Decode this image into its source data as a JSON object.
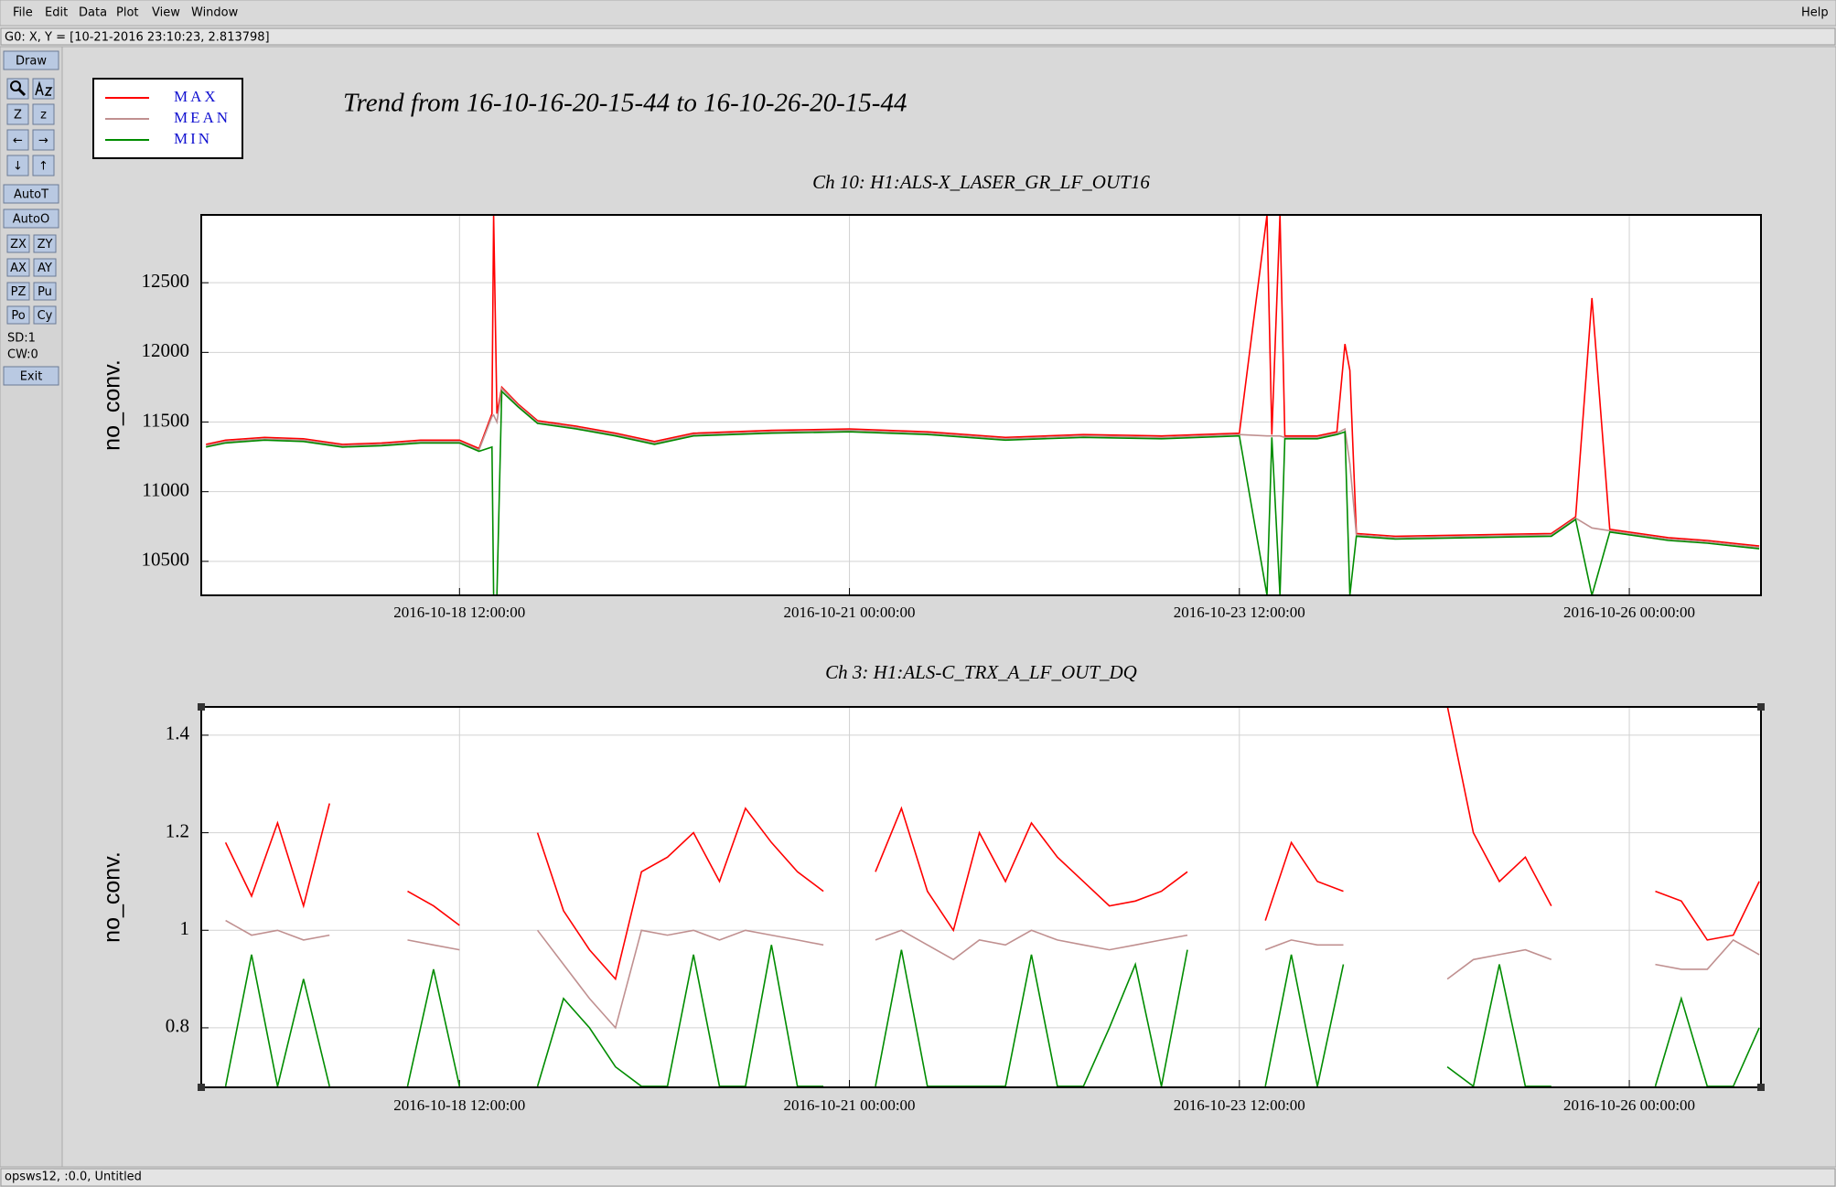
{
  "menu": {
    "items": [
      "File",
      "Edit",
      "Data",
      "Plot",
      "View",
      "Window"
    ],
    "help": "Help"
  },
  "status": "G0: X, Y = [10-21-2016 23:10:23, 2.813798]",
  "toolbar": {
    "draw": "Draw",
    "zoom": [
      "Z",
      "z"
    ],
    "arrows": [
      "←",
      "→",
      "↓",
      "↑"
    ],
    "auto": [
      "AutoT",
      "AutoO"
    ],
    "buttons": [
      "ZX",
      "ZY",
      "AX",
      "AY",
      "PZ",
      "Pu",
      "Po",
      "Cy"
    ],
    "info": [
      "SD:1",
      "CW:0"
    ],
    "exit": "Exit"
  },
  "title": "Trend from 16-10-16-20-15-44 to 16-10-26-20-15-44",
  "footer": "opsws12, :0.0, Untitled",
  "chart_data": [
    {
      "type": "line",
      "title": "Ch 10: H1:ALS-X_LASER_GR_LF_OUT16",
      "y_label": "no_conv.",
      "grid": true,
      "xlim": [
        "2016-10-16 20:15:44",
        "2016-10-26 20:15:44"
      ],
      "xticks": [
        "2016-10-18 12:00:00",
        "2016-10-21 00:00:00",
        "2016-10-23 12:00:00",
        "2016-10-26 00:00:00"
      ],
      "ylim": [
        10256,
        12987
      ],
      "yticks": [
        10500,
        11000,
        11500,
        12000,
        12500
      ],
      "x": [
        "2016-10-16 21:00:00",
        "2016-10-17 00:00:00",
        "2016-10-17 06:00:00",
        "2016-10-17 12:00:00",
        "2016-10-17 18:00:00",
        "2016-10-18 00:00:00",
        "2016-10-18 06:00:00",
        "2016-10-18 12:00:00",
        "2016-10-18 15:00:00",
        "2016-10-18 17:00:00",
        "2016-10-18 17:15:00",
        "2016-10-18 17:45:00",
        "2016-10-18 18:30:00",
        "2016-10-18 21:00:00",
        "2016-10-19 00:00:00",
        "2016-10-19 06:00:00",
        "2016-10-19 12:00:00",
        "2016-10-19 18:00:00",
        "2016-10-20 00:00:00",
        "2016-10-20 12:00:00",
        "2016-10-21 00:00:00",
        "2016-10-21 12:00:00",
        "2016-10-22 00:00:00",
        "2016-10-22 12:00:00",
        "2016-10-23 00:00:00",
        "2016-10-23 12:00:00",
        "2016-10-23 16:15:00",
        "2016-10-23 17:00:00",
        "2016-10-23 18:15:00",
        "2016-10-23 19:00:00",
        "2016-10-24 00:00:00",
        "2016-10-24 03:00:00",
        "2016-10-24 04:15:00",
        "2016-10-24 05:00:00",
        "2016-10-24 06:00:00",
        "2016-10-24 12:00:00",
        "2016-10-25 00:00:00",
        "2016-10-25 12:00:00",
        "2016-10-25 15:45:00",
        "2016-10-25 18:15:00",
        "2016-10-25 21:00:00",
        "2016-10-26 06:00:00",
        "2016-10-26 12:00:00",
        "2016-10-26 20:00:00"
      ],
      "series": [
        {
          "name": "MAX",
          "color": "#ff0000",
          "values": [
            11340,
            11370,
            11390,
            11380,
            11340,
            11350,
            11370,
            11370,
            11310,
            11560,
            12987,
            11560,
            11750,
            11630,
            11510,
            11470,
            11420,
            11360,
            11420,
            11440,
            11450,
            11430,
            11390,
            11410,
            11400,
            11420,
            12987,
            11410,
            12987,
            11400,
            11400,
            11430,
            12060,
            11870,
            10700,
            10680,
            10690,
            10700,
            10820,
            12390,
            10730,
            10670,
            10650,
            10610
          ]
        },
        {
          "name": "MEAN",
          "color": "#c09090",
          "values": [
            11330,
            11360,
            11380,
            11370,
            11330,
            11340,
            11360,
            11360,
            11300,
            11540,
            11550,
            11500,
            11740,
            11620,
            11500,
            11460,
            11410,
            11350,
            11410,
            11430,
            11440,
            11420,
            11380,
            11400,
            11390,
            11410,
            11400,
            11400,
            11400,
            11390,
            11390,
            11420,
            11450,
            11200,
            10690,
            10670,
            10680,
            10690,
            10810,
            10740,
            10720,
            10660,
            10640,
            10600
          ]
        },
        {
          "name": "MIN",
          "color": "#008c00",
          "values": [
            11320,
            11350,
            11370,
            11360,
            11320,
            11330,
            11350,
            11350,
            11290,
            11320,
            10256,
            10256,
            11720,
            11610,
            11490,
            11450,
            11400,
            11340,
            11400,
            11420,
            11430,
            11410,
            11370,
            11390,
            11380,
            11400,
            10256,
            11390,
            10256,
            11380,
            11380,
            11410,
            11430,
            10256,
            10680,
            10660,
            10670,
            10680,
            10800,
            10256,
            10710,
            10650,
            10630,
            10590
          ]
        }
      ]
    },
    {
      "type": "line",
      "title": "Ch 3: H1:ALS-C_TRX_A_LF_OUT_DQ",
      "y_label": "no_conv.",
      "grid": true,
      "xlim": [
        "2016-10-16 20:15:44",
        "2016-10-26 20:15:44"
      ],
      "xticks": [
        "2016-10-18 12:00:00",
        "2016-10-21 00:00:00",
        "2016-10-23 12:00:00",
        "2016-10-26 00:00:00"
      ],
      "ylim": [
        0.678,
        1.458
      ],
      "yticks": [
        0.8,
        1,
        1.2,
        1.4
      ],
      "x": [
        "2016-10-17 00:00:00",
        "2016-10-17 04:00:00",
        "2016-10-17 08:00:00",
        "2016-10-17 12:00:00",
        "2016-10-17 16:00:00",
        "2016-10-17 20:00:00",
        "2016-10-18 00:00:00",
        "2016-10-18 04:00:00",
        "2016-10-18 08:00:00",
        "2016-10-18 12:00:00",
        "2016-10-18 16:00:00",
        "2016-10-18 20:00:00",
        "2016-10-19 00:00:00",
        "2016-10-19 04:00:00",
        "2016-10-19 08:00:00",
        "2016-10-19 12:00:00",
        "2016-10-19 16:00:00",
        "2016-10-19 20:00:00",
        "2016-10-20 00:00:00",
        "2016-10-20 04:00:00",
        "2016-10-20 08:00:00",
        "2016-10-20 12:00:00",
        "2016-10-20 16:00:00",
        "2016-10-20 20:00:00",
        "2016-10-21 00:00:00",
        "2016-10-21 04:00:00",
        "2016-10-21 08:00:00",
        "2016-10-21 12:00:00",
        "2016-10-21 16:00:00",
        "2016-10-21 20:00:00",
        "2016-10-22 00:00:00",
        "2016-10-22 04:00:00",
        "2016-10-22 08:00:00",
        "2016-10-22 12:00:00",
        "2016-10-22 16:00:00",
        "2016-10-22 20:00:00",
        "2016-10-23 00:00:00",
        "2016-10-23 04:00:00",
        "2016-10-23 08:00:00",
        "2016-10-23 12:00:00",
        "2016-10-23 16:00:00",
        "2016-10-23 20:00:00",
        "2016-10-24 00:00:00",
        "2016-10-24 04:00:00",
        "2016-10-24 08:00:00",
        "2016-10-24 12:00:00",
        "2016-10-24 16:00:00",
        "2016-10-24 20:00:00",
        "2016-10-25 00:00:00",
        "2016-10-25 04:00:00",
        "2016-10-25 08:00:00",
        "2016-10-25 12:00:00",
        "2016-10-25 16:00:00",
        "2016-10-25 20:00:00",
        "2016-10-26 00:00:00",
        "2016-10-26 04:00:00",
        "2016-10-26 08:00:00",
        "2016-10-26 12:00:00",
        "2016-10-26 16:00:00",
        "2016-10-26 20:00:00"
      ],
      "series": [
        {
          "name": "MAX",
          "color": "#ff0000",
          "values": [
            1.18,
            1.07,
            1.22,
            1.05,
            1.26,
            null,
            null,
            1.08,
            1.05,
            1.01,
            null,
            null,
            1.2,
            1.04,
            0.96,
            0.9,
            1.12,
            1.15,
            1.2,
            1.1,
            1.25,
            1.18,
            1.12,
            1.08,
            null,
            1.12,
            1.25,
            1.08,
            1.0,
            1.2,
            1.1,
            1.22,
            1.15,
            1.1,
            1.05,
            1.06,
            1.08,
            1.12,
            null,
            null,
            1.02,
            1.18,
            1.1,
            1.08,
            null,
            null,
            null,
            1.46,
            1.2,
            1.1,
            1.15,
            1.05,
            null,
            null,
            null,
            1.08,
            1.06,
            0.98,
            0.99,
            1.1
          ]
        },
        {
          "name": "MEAN",
          "color": "#c09090",
          "values": [
            1.02,
            0.99,
            1.0,
            0.98,
            0.99,
            null,
            null,
            0.98,
            0.97,
            0.96,
            null,
            null,
            1.0,
            0.93,
            0.86,
            0.8,
            1.0,
            0.99,
            1.0,
            0.98,
            1.0,
            0.99,
            0.98,
            0.97,
            null,
            0.98,
            1.0,
            0.97,
            0.94,
            0.98,
            0.97,
            1.0,
            0.98,
            0.97,
            0.96,
            0.97,
            0.98,
            0.99,
            null,
            null,
            0.96,
            0.98,
            0.97,
            0.97,
            null,
            null,
            null,
            0.9,
            0.94,
            0.95,
            0.96,
            0.94,
            null,
            null,
            null,
            0.93,
            0.92,
            0.92,
            0.98,
            0.95
          ]
        },
        {
          "name": "MIN",
          "color": "#008c00",
          "values": [
            0.68,
            0.95,
            0.68,
            0.9,
            0.68,
            null,
            null,
            0.68,
            0.92,
            0.68,
            null,
            null,
            0.68,
            0.86,
            0.8,
            0.72,
            0.68,
            0.68,
            0.95,
            0.68,
            0.68,
            0.97,
            0.68,
            0.68,
            null,
            0.68,
            0.96,
            0.68,
            0.68,
            0.68,
            0.68,
            0.95,
            0.68,
            0.68,
            0.8,
            0.93,
            0.68,
            0.96,
            null,
            null,
            0.68,
            0.95,
            0.68,
            0.93,
            null,
            null,
            null,
            0.72,
            0.68,
            0.93,
            0.68,
            0.68,
            null,
            null,
            null,
            0.68,
            0.86,
            0.68,
            0.68,
            0.8
          ]
        }
      ]
    }
  ]
}
